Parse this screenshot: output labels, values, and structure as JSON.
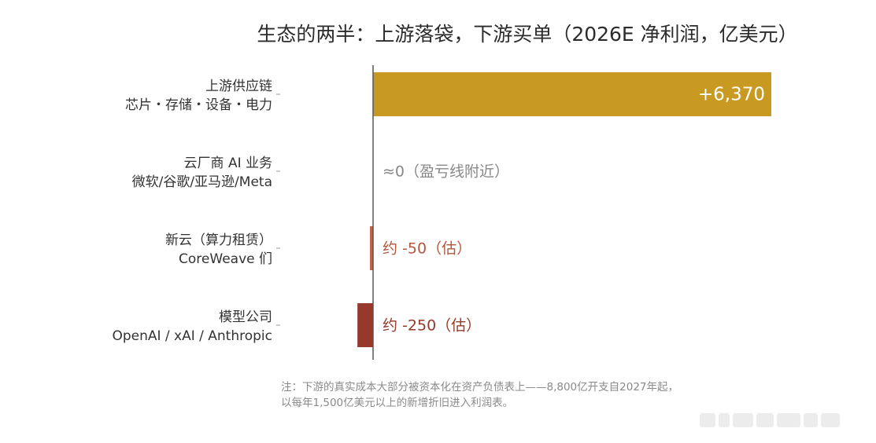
{
  "chart_data": {
    "type": "bar",
    "orientation": "horizontal",
    "title": "生态的两半：上游落袋，下游买单（2026E 净利润，亿美元）",
    "categories": [
      {
        "line1": "上游供应链",
        "line2": "芯片・存储・设备・电力"
      },
      {
        "line1": "云厂商 AI 业务",
        "line2": "微软/谷歌/亚马逊/Meta"
      },
      {
        "line1": "新云（算力租赁）",
        "line2": "CoreWeave 们"
      },
      {
        "line1": "模型公司",
        "line2": "OpenAI / xAI / Anthropic"
      }
    ],
    "values": [
      6370,
      0,
      -50,
      -250
    ],
    "data_labels": [
      "+6,370",
      "≈0（盈亏线附近）",
      "约 -50（估）",
      "约 -250（估）"
    ],
    "colors": [
      "#c89a22",
      "#9a9a9a",
      "#c0624a",
      "#96392c"
    ],
    "label_colors": [
      "#ffffff",
      "#888888",
      "#b5563c",
      "#96392c"
    ],
    "grid": false,
    "note": {
      "line1": "注：下游的真实成本大部分被资本化在资产负债表上——8,800亿开支自2027年起，",
      "line2": "以每年1,500亿美元以上的新增折旧进入利润表。"
    }
  }
}
